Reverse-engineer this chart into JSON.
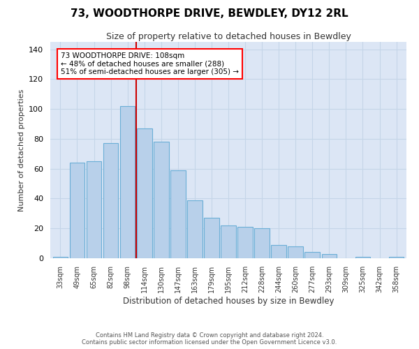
{
  "title": "73, WOODTHORPE DRIVE, BEWDLEY, DY12 2RL",
  "subtitle": "Size of property relative to detached houses in Bewdley",
  "xlabel": "Distribution of detached houses by size in Bewdley",
  "ylabel": "Number of detached properties",
  "bar_labels": [
    "33sqm",
    "49sqm",
    "65sqm",
    "82sqm",
    "98sqm",
    "114sqm",
    "130sqm",
    "147sqm",
    "163sqm",
    "179sqm",
    "195sqm",
    "212sqm",
    "228sqm",
    "244sqm",
    "260sqm",
    "277sqm",
    "293sqm",
    "309sqm",
    "325sqm",
    "342sqm",
    "358sqm"
  ],
  "bar_values": [
    1,
    64,
    65,
    77,
    102,
    87,
    78,
    59,
    39,
    27,
    22,
    21,
    20,
    9,
    8,
    4,
    3,
    0,
    1,
    0,
    1
  ],
  "bar_color": "#b8d0ea",
  "bar_edge_color": "#6aaed6",
  "vline_color": "#cc0000",
  "vline_pos": 4.5,
  "annotation_line1": "73 WOODTHORPE DRIVE: 108sqm",
  "annotation_line2": "← 48% of detached houses are smaller (288)",
  "annotation_line3": "51% of semi-detached houses are larger (305) →",
  "ylim": [
    0,
    145
  ],
  "yticks": [
    0,
    20,
    40,
    60,
    80,
    100,
    120,
    140
  ],
  "bg_color": "#dce6f5",
  "grid_color": "#c5d5e8",
  "footer_line1": "Contains HM Land Registry data © Crown copyright and database right 2024.",
  "footer_line2": "Contains public sector information licensed under the Open Government Licence v3.0."
}
